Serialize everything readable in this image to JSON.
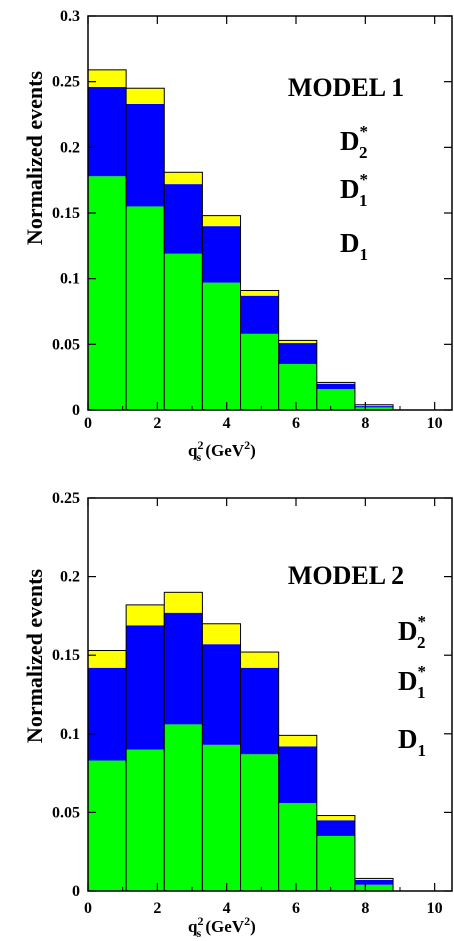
{
  "chart_data": [
    {
      "type": "bar",
      "stacked": true,
      "annotation": "MODEL 1",
      "xlabel": {
        "q": "q",
        "sub": "s",
        "sup": "2",
        "rest": " (GeV",
        "sup2": "2",
        "close": ")"
      },
      "ylabel": "Normalized events",
      "xlim": [
        0,
        10.5
      ],
      "ylim": [
        0,
        0.3
      ],
      "xticks": [
        "0",
        "2",
        "4",
        "6",
        "8",
        "10"
      ],
      "yticks": [
        "0",
        "0.05",
        "0.1",
        "0.15",
        "0.2",
        "0.25",
        "0.3"
      ],
      "bin_edges": [
        0,
        1.1,
        2.2,
        3.3,
        4.4,
        5.5,
        6.6,
        7.7,
        8.8
      ],
      "series": [
        {
          "name": "D1",
          "color": "#00ff00",
          "values": [
            0.178,
            0.155,
            0.119,
            0.097,
            0.058,
            0.035,
            0.016,
            0.002
          ]
        },
        {
          "name": "D1*",
          "color": "#0000ff",
          "values": [
            0.068,
            0.078,
            0.053,
            0.043,
            0.029,
            0.016,
            0.004,
            0.001
          ]
        },
        {
          "name": "D2*",
          "color": "#ffff00",
          "values": [
            0.013,
            0.012,
            0.009,
            0.008,
            0.004,
            0.002,
            0.001,
            0.001
          ]
        }
      ],
      "legend": [
        {
          "main": "D",
          "sub": "2",
          "sup": "*"
        },
        {
          "main": "D",
          "sub": "1",
          "sup": "*"
        },
        {
          "main": "D",
          "sub": "1",
          "sup": ""
        }
      ]
    },
    {
      "type": "bar",
      "stacked": true,
      "annotation": "MODEL 2",
      "xlabel": {
        "q": "q",
        "sub": "s",
        "sup": "2",
        "rest": " (GeV",
        "sup2": "2",
        "close": ")"
      },
      "ylabel": "Normalized events",
      "xlim": [
        0,
        10.5
      ],
      "ylim": [
        0,
        0.25
      ],
      "xticks": [
        "0",
        "2",
        "4",
        "6",
        "8",
        "10"
      ],
      "yticks": [
        "0",
        "0.05",
        "0.1",
        "0.15",
        "0.2",
        "0.25"
      ],
      "bin_edges": [
        0,
        1.1,
        2.2,
        3.3,
        4.4,
        5.5,
        6.6,
        7.7,
        8.8
      ],
      "series": [
        {
          "name": "D1",
          "color": "#00ff00",
          "values": [
            0.083,
            0.09,
            0.106,
            0.093,
            0.087,
            0.056,
            0.035,
            0.004
          ]
        },
        {
          "name": "D1*",
          "color": "#0000ff",
          "values": [
            0.059,
            0.079,
            0.071,
            0.064,
            0.055,
            0.036,
            0.01,
            0.003
          ]
        },
        {
          "name": "D2*",
          "color": "#ffff00",
          "values": [
            0.011,
            0.013,
            0.013,
            0.013,
            0.01,
            0.007,
            0.003,
            0.001
          ]
        }
      ],
      "legend": [
        {
          "main": "D",
          "sub": "2",
          "sup": "*"
        },
        {
          "main": "D",
          "sub": "1",
          "sup": "*"
        },
        {
          "main": "D",
          "sub": "1",
          "sup": ""
        }
      ]
    }
  ]
}
